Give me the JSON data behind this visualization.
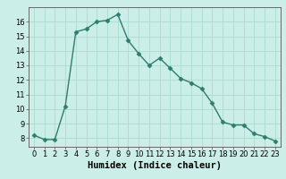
{
  "x": [
    0,
    1,
    2,
    3,
    4,
    5,
    6,
    7,
    8,
    9,
    10,
    11,
    12,
    13,
    14,
    15,
    16,
    17,
    18,
    19,
    20,
    21,
    22,
    23
  ],
  "y": [
    8.2,
    7.9,
    7.9,
    10.2,
    15.3,
    15.5,
    16.0,
    16.1,
    16.5,
    14.7,
    13.8,
    13.0,
    13.5,
    12.8,
    12.1,
    11.8,
    11.4,
    10.4,
    9.1,
    8.9,
    8.9,
    8.3,
    8.1,
    7.8
  ],
  "line_color": "#2e7d6e",
  "marker": "D",
  "marker_size": 2.5,
  "bg_color": "#cceee8",
  "grid_color": "#aaddcc",
  "xlabel": "Humidex (Indice chaleur)",
  "xlim": [
    -0.5,
    23.5
  ],
  "ylim": [
    7.4,
    17.0
  ],
  "yticks": [
    8,
    9,
    10,
    11,
    12,
    13,
    14,
    15,
    16
  ],
  "xticks": [
    0,
    1,
    2,
    3,
    4,
    5,
    6,
    7,
    8,
    9,
    10,
    11,
    12,
    13,
    14,
    15,
    16,
    17,
    18,
    19,
    20,
    21,
    22,
    23
  ],
  "tick_fontsize": 6,
  "xlabel_fontsize": 7.5
}
